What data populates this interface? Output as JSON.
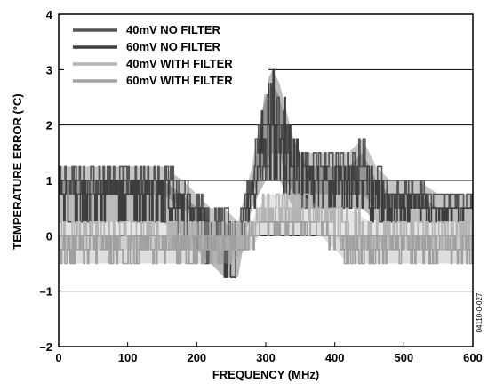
{
  "chart_data": {
    "type": "line",
    "title": "",
    "xlabel": "FREQUENCY (MHz)",
    "ylabel": "TEMPERATURE ERROR (°C)",
    "xlim": [
      0,
      600
    ],
    "ylim": [
      -2,
      4
    ],
    "xticks": [
      "0",
      "100",
      "200",
      "300",
      "400",
      "500",
      "600"
    ],
    "yticks": [
      "–2",
      "–1",
      "0",
      "1",
      "2",
      "3",
      "4"
    ],
    "grid": "horizontal",
    "legend_position": "top-left",
    "colors": {
      "no_filter_40": "#555555",
      "no_filter_60": "#3d3d3d",
      "with_filter_40": "#b4b4b4",
      "with_filter_60": "#a0a0a0"
    },
    "series": [
      {
        "name": "40mV NO FILTER",
        "x": [
          0,
          50,
          100,
          150,
          180,
          200,
          220,
          240,
          260,
          270,
          280,
          290,
          300,
          310,
          320,
          330,
          340,
          350,
          360,
          380,
          400,
          420,
          440,
          460,
          480,
          500,
          520,
          550,
          600
        ],
        "upper": [
          1.25,
          1.25,
          1.25,
          1.25,
          1.0,
          0.75,
          0.5,
          0.5,
          0.25,
          0.75,
          1.25,
          2.0,
          2.5,
          2.75,
          2.5,
          2.0,
          1.75,
          1.5,
          1.5,
          1.5,
          1.5,
          1.5,
          1.75,
          1.25,
          1.0,
          1.0,
          1.0,
          0.75,
          0.75
        ],
        "lower": [
          0.75,
          0.75,
          0.75,
          0.75,
          0.5,
          0.25,
          0.0,
          0.0,
          0.0,
          0.5,
          0.75,
          1.0,
          1.25,
          1.5,
          1.5,
          1.0,
          0.75,
          0.75,
          0.75,
          0.75,
          0.75,
          0.75,
          0.75,
          0.5,
          0.5,
          0.5,
          0.5,
          0.5,
          0.5
        ]
      },
      {
        "name": "60mV NO FILTER",
        "x": [
          0,
          50,
          100,
          150,
          180,
          200,
          220,
          240,
          260,
          270,
          280,
          290,
          300,
          310,
          320,
          330,
          340,
          350,
          360,
          380,
          400,
          420,
          440,
          460,
          480,
          500,
          520,
          550,
          600
        ],
        "upper": [
          1.0,
          1.0,
          1.0,
          1.0,
          0.75,
          0.5,
          0.25,
          0.25,
          0.0,
          0.5,
          1.0,
          1.75,
          2.75,
          3.0,
          2.75,
          2.25,
          1.75,
          1.5,
          1.25,
          1.25,
          1.25,
          1.25,
          1.5,
          1.0,
          0.75,
          0.75,
          0.75,
          0.5,
          0.5
        ],
        "lower": [
          0.25,
          0.25,
          0.25,
          0.25,
          0.0,
          -0.25,
          -0.5,
          -0.75,
          -0.75,
          0.0,
          0.5,
          0.75,
          1.0,
          1.0,
          1.0,
          0.75,
          0.5,
          0.5,
          0.5,
          0.5,
          0.5,
          0.5,
          0.5,
          0.25,
          0.25,
          0.25,
          0.25,
          0.25,
          0.25
        ]
      },
      {
        "name": "40mV WITH FILTER",
        "x": [
          0,
          50,
          100,
          150,
          200,
          250,
          270,
          280,
          290,
          300,
          320,
          350,
          380,
          400,
          420,
          450,
          500,
          550,
          600
        ],
        "upper": [
          0.25,
          0.25,
          0.25,
          0.25,
          0.25,
          0.25,
          0.25,
          0.25,
          0.5,
          0.75,
          0.75,
          0.75,
          0.5,
          0.5,
          0.5,
          0.25,
          0.25,
          0.25,
          0.25
        ],
        "lower": [
          -0.25,
          -0.25,
          -0.25,
          -0.25,
          -0.25,
          -0.25,
          -0.25,
          0.0,
          0.25,
          0.25,
          0.25,
          0.25,
          0.25,
          0.0,
          -0.25,
          -0.25,
          -0.25,
          -0.25,
          -0.25
        ]
      },
      {
        "name": "60mV WITH FILTER",
        "x": [
          0,
          50,
          100,
          150,
          200,
          250,
          270,
          280,
          290,
          300,
          320,
          350,
          380,
          400,
          420,
          450,
          500,
          550,
          600
        ],
        "upper": [
          0.0,
          0.0,
          0.0,
          0.0,
          0.0,
          0.0,
          0.0,
          0.25,
          0.25,
          0.25,
          0.25,
          0.25,
          0.25,
          0.0,
          0.0,
          0.0,
          0.0,
          0.0,
          0.0
        ],
        "lower": [
          -0.5,
          -0.5,
          -0.5,
          -0.5,
          -0.5,
          -0.5,
          -0.25,
          -0.25,
          0.0,
          0.0,
          0.0,
          0.0,
          0.0,
          -0.25,
          -0.5,
          -0.5,
          -0.5,
          -0.5,
          -0.5
        ]
      }
    ],
    "side_note": "04110-0-027"
  }
}
